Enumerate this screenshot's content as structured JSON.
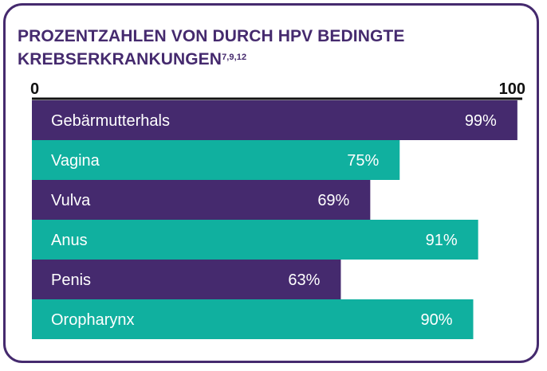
{
  "chart_data": {
    "type": "bar",
    "orientation": "horizontal",
    "title": "PROZENTZAHLEN VON DURCH HPV BEDINGTE KREBSERKRANKUNGEN",
    "title_superscript": "7,9,12",
    "xlim": [
      0,
      100
    ],
    "tick_labels": [
      "0",
      "100"
    ],
    "grid": false,
    "categories": [
      "Gebärmutterhals",
      "Vagina",
      "Vulva",
      "Anus",
      "Penis",
      "Oropharynx"
    ],
    "values": [
      99,
      75,
      69,
      91,
      63,
      90
    ],
    "value_labels": [
      "99%",
      "75%",
      "69%",
      "91%",
      "63%",
      "90%"
    ],
    "colors": {
      "purple": "#452a6e",
      "teal": "#10b09f",
      "bar_colors": [
        "#452a6e",
        "#10b09f",
        "#452a6e",
        "#10b09f",
        "#452a6e",
        "#10b09f"
      ]
    }
  }
}
